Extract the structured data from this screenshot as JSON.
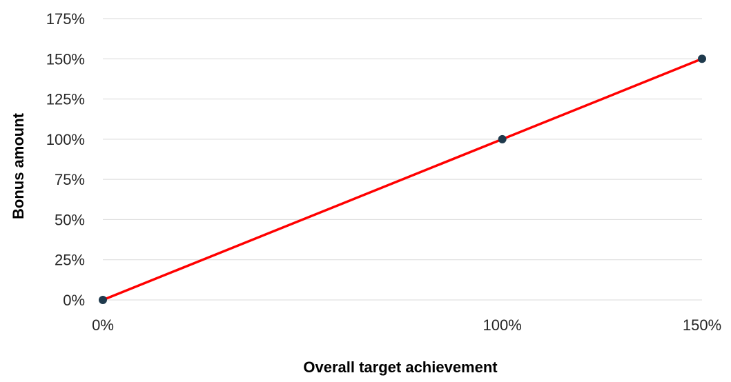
{
  "chart_data": {
    "type": "line",
    "title": "",
    "xlabel": "Overall target achievement",
    "ylabel": "Bonus amount",
    "x": [
      0,
      100,
      150
    ],
    "series": [
      {
        "values": [
          0,
          100,
          150
        ],
        "color": "#ff0000",
        "marker_color": "#1f3a4d"
      }
    ],
    "x_ticks": [
      0,
      100,
      150
    ],
    "x_tick_labels": [
      "0%",
      "100%",
      "150%"
    ],
    "y_ticks": [
      0,
      25,
      50,
      75,
      100,
      125,
      150,
      175
    ],
    "y_tick_labels": [
      "0%",
      "25%",
      "50%",
      "75%",
      "100%",
      "125%",
      "150%",
      "175%"
    ],
    "xlim": [
      0,
      150
    ],
    "ylim": [
      0,
      175
    ],
    "grid": true,
    "legend": "none"
  }
}
